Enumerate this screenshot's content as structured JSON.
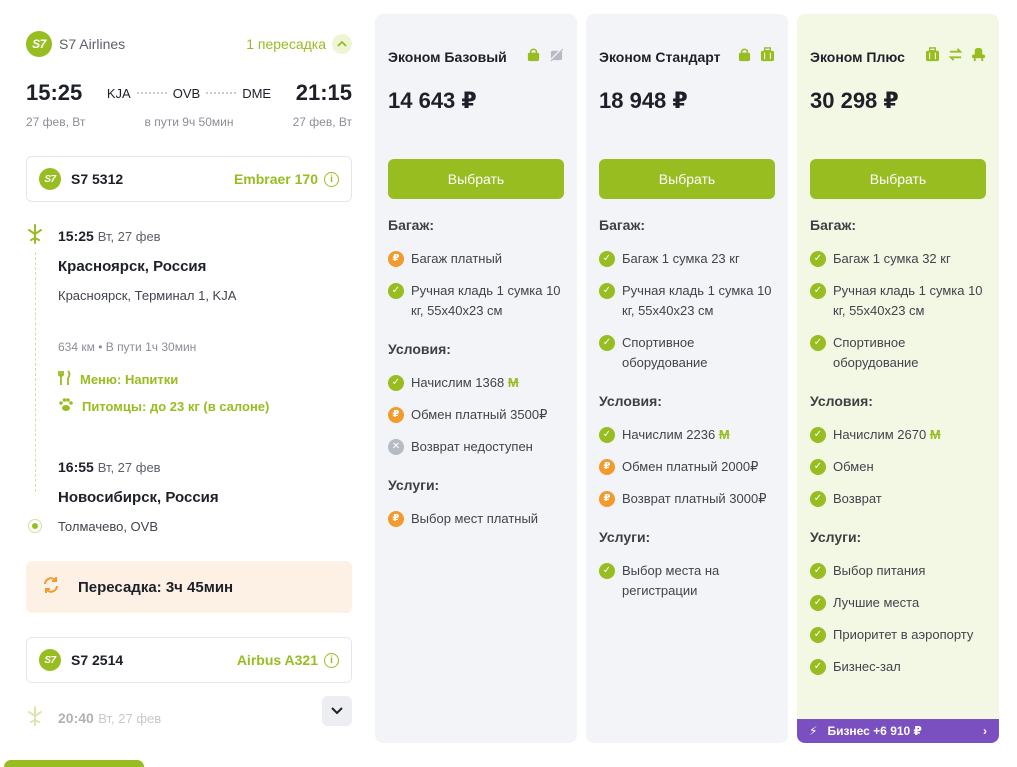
{
  "itinerary": {
    "airline": "S7 Airlines",
    "logo_text": "S7",
    "transfers": "1 пересадка",
    "depart_time": "15:25",
    "arrive_time": "21:15",
    "from_code": "KJA",
    "via_code": "OVB",
    "to_code": "DME",
    "depart_date": "27 фев, Вт",
    "arrive_date": "27 фев, Вт",
    "duration": "в пути 9ч 50мин"
  },
  "flight1": {
    "number": "S7 5312",
    "aircraft": "Embraer 170",
    "dep_time": "15:25",
    "dep_date": "Вт, 27 фев",
    "dep_city": "Красноярск, Россия",
    "dep_airport": "Красноярск, Терминал 1, KJA",
    "distance": "634 км • В пути 1ч 30мин",
    "meal": "Меню: Напитки",
    "pets": "Питомцы: до 23 кг (в салоне)",
    "arr_time": "16:55",
    "arr_date": "Вт, 27 фев",
    "arr_city": "Новосибирск, Россия",
    "arr_airport": "Толмачево, OVB"
  },
  "transfer_label": "Пересадка: 3ч 45мин",
  "flight2": {
    "number": "S7 2514",
    "aircraft": "Airbus A321",
    "dep_time": "20:40",
    "dep_date": "Вт, 27 фев"
  },
  "tariffs": [
    {
      "name": "Эконом Базовый",
      "price": "14 643 ₽",
      "button": "Выбрать",
      "sections": [
        {
          "title": "Багаж:",
          "items": [
            {
              "type": "paid",
              "text": "Багаж платный"
            },
            {
              "type": "ok",
              "text": "Ручная кладь 1 сумка 10 кг, 55х40х23 см"
            }
          ]
        },
        {
          "title": "Условия:",
          "items": [
            {
              "type": "ok",
              "text": "Начислим 1368",
              "miles": "М"
            },
            {
              "type": "paid",
              "text": "Обмен платный 3500₽"
            },
            {
              "type": "no",
              "text": "Возврат недоступен"
            }
          ]
        },
        {
          "title": "Услуги:",
          "items": [
            {
              "type": "paid",
              "text": "Выбор мест платный"
            }
          ]
        }
      ]
    },
    {
      "name": "Эконом Стандарт",
      "price": "18 948 ₽",
      "button": "Выбрать",
      "sections": [
        {
          "title": "Багаж:",
          "items": [
            {
              "type": "ok",
              "text": "Багаж 1 сумка 23 кг"
            },
            {
              "type": "ok",
              "text": "Ручная кладь 1 сумка 10 кг, 55х40х23 см"
            },
            {
              "type": "ok",
              "text": "Спортивное оборудование"
            }
          ]
        },
        {
          "title": "Условия:",
          "items": [
            {
              "type": "ok",
              "text": "Начислим 2236",
              "miles": "М"
            },
            {
              "type": "paid",
              "text": "Обмен платный 2000₽"
            },
            {
              "type": "paid",
              "text": "Возврат платный 3000₽"
            }
          ]
        },
        {
          "title": "Услуги:",
          "items": [
            {
              "type": "ok",
              "text": "Выбор места на регистрации"
            }
          ]
        }
      ]
    },
    {
      "name": "Эконом Плюс",
      "price": "30 298 ₽",
      "button": "Выбрать",
      "sections": [
        {
          "title": "Багаж:",
          "items": [
            {
              "type": "ok",
              "text": "Багаж 1 сумка 32 кг"
            },
            {
              "type": "ok",
              "text": "Ручная кладь 1 сумка 10 кг, 55х40х23 см"
            },
            {
              "type": "ok",
              "text": "Спортивное оборудование"
            }
          ]
        },
        {
          "title": "Условия:",
          "items": [
            {
              "type": "ok",
              "text": "Начислим 2670",
              "miles": "М"
            },
            {
              "type": "ok",
              "text": "Обмен"
            },
            {
              "type": "ok",
              "text": "Возврат"
            }
          ]
        },
        {
          "title": "Услуги:",
          "items": [
            {
              "type": "ok",
              "text": "Выбор питания"
            },
            {
              "type": "ok",
              "text": "Лучшие места"
            },
            {
              "type": "ok",
              "text": "Приоритет в аэропорту"
            },
            {
              "type": "ok",
              "text": "Бизнес-зал"
            }
          ]
        }
      ],
      "upgrade": "Бизнес +6 910 ₽"
    }
  ],
  "colors": {
    "accent": "#97bd21",
    "paid": "#f29a2e",
    "business": "#7a4fc0"
  }
}
